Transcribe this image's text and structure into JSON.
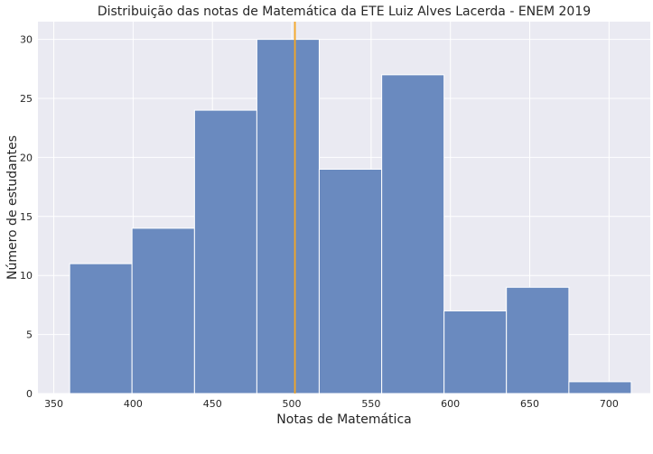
{
  "chart_data": {
    "type": "bar",
    "title": "Distribuição das notas de Matemática da ETE Luiz Alves Lacerda - ENEM 2019",
    "xlabel": "Notas de Matemática",
    "ylabel": "Número de estudantes",
    "bins": [
      {
        "start": 360.0,
        "end": 399.3,
        "count": 11
      },
      {
        "start": 399.3,
        "end": 438.7,
        "count": 14
      },
      {
        "start": 438.7,
        "end": 478.0,
        "count": 24
      },
      {
        "start": 478.0,
        "end": 517.3,
        "count": 30
      },
      {
        "start": 517.3,
        "end": 556.7,
        "count": 19
      },
      {
        "start": 556.7,
        "end": 596.0,
        "count": 27
      },
      {
        "start": 596.0,
        "end": 635.3,
        "count": 7
      },
      {
        "start": 635.3,
        "end": 674.7,
        "count": 9
      },
      {
        "start": 674.7,
        "end": 714.0,
        "count": 1
      }
    ],
    "mean_line": {
      "x": 502,
      "color": "#f5a623"
    },
    "xlim": [
      340,
      726
    ],
    "ylim": [
      0,
      31.5
    ],
    "xticks": [
      350,
      400,
      450,
      500,
      550,
      600,
      650,
      700
    ],
    "yticks": [
      0,
      5,
      10,
      15,
      20,
      25,
      30
    ],
    "grid": true,
    "colors": {
      "bar": "#6a8abf",
      "bar_edge": "#ffffff",
      "background": "#eaeaf2",
      "grid": "#ffffff"
    }
  }
}
